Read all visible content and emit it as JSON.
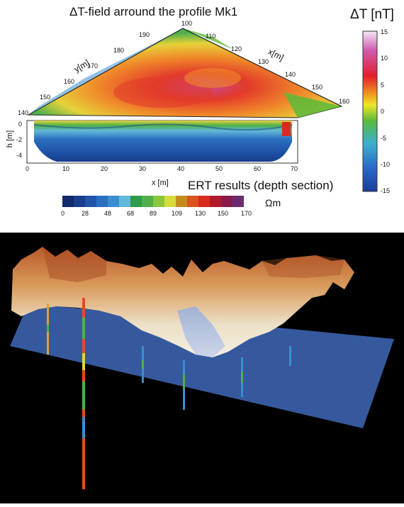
{
  "figure": {
    "title": "ΔT-field arround the profile Mk1",
    "colorbar_label": "ΔT [nT]",
    "colorbar_ticks": [
      "15",
      "10",
      "5",
      "0",
      "-5",
      "-10",
      "-15"
    ],
    "y_axis_label": "y[m]",
    "x_axis_label_map": "x[m]",
    "y_ticks": [
      "190",
      "180",
      "170",
      "160",
      "150",
      "140"
    ],
    "x_ticks_map": [
      "100",
      "110",
      "120",
      "130",
      "140",
      "150",
      "160"
    ],
    "h_axis_label": "h [m]",
    "h_ticks": [
      "0",
      "-2",
      "-4"
    ],
    "x_axis_label_section": "x [m]",
    "x_ticks_section": [
      "0",
      "10",
      "20",
      "30",
      "40",
      "50",
      "60",
      "70"
    ],
    "ert_title": "ERT results (depth section)",
    "ert_scale_ticks": [
      "0",
      "28",
      "48",
      "68",
      "89",
      "109",
      "130",
      "150",
      "170"
    ],
    "ert_unit": "Ωm",
    "ert_colors": [
      "#102a6b",
      "#173d8c",
      "#1f54a8",
      "#2a6fc0",
      "#3a8ed0",
      "#62b8d8",
      "#2f9a4a",
      "#4fb04a",
      "#8cc63f",
      "#d6dc3a",
      "#c58a1e",
      "#d9541e",
      "#d92a1e",
      "#b01a2a",
      "#8a1a4a",
      "#6a2a70"
    ]
  },
  "scene3d": {
    "description_colors": {
      "terrain_top": "#c2703a",
      "terrain_low": "#e8dcc0",
      "plane": "#3f68b8",
      "background": "#000000"
    }
  }
}
